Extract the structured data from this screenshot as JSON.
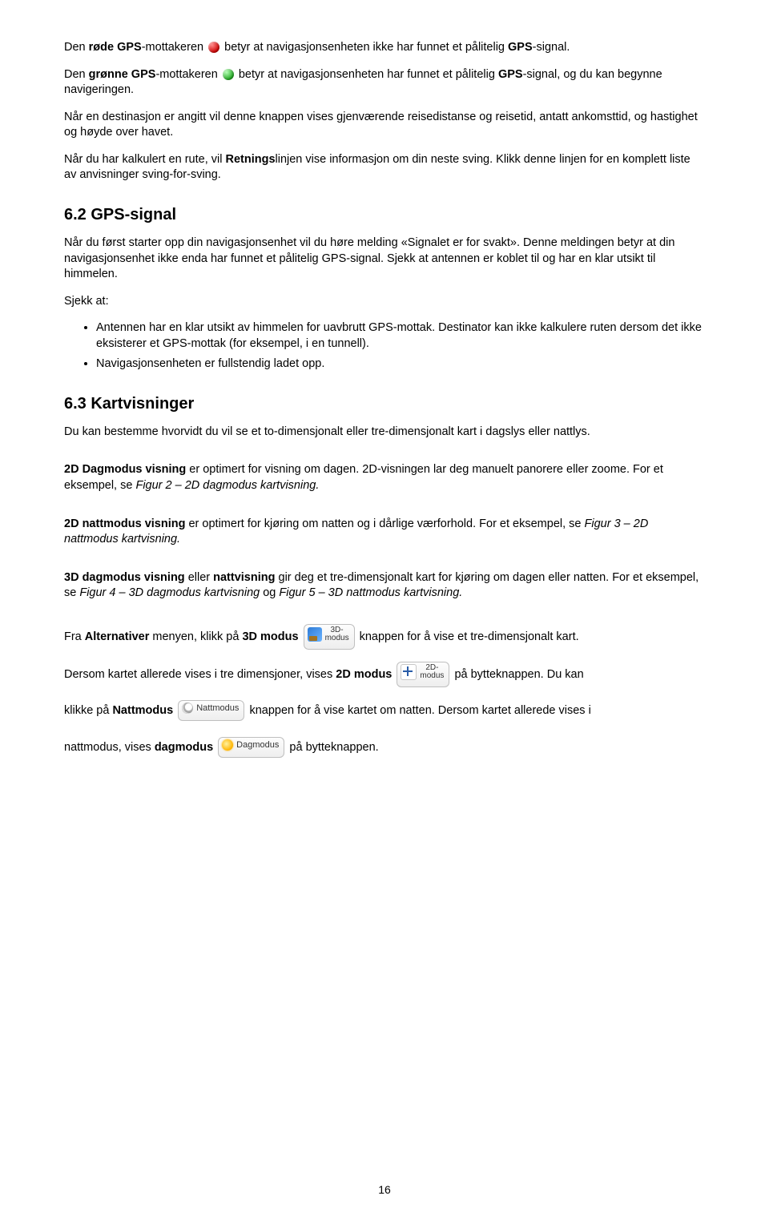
{
  "para1": {
    "pre": "Den ",
    "red_label": "røde GPS",
    "mid": "-mottakeren ",
    "post": " betyr at navigasjonsenheten ikke har funnet et pålitelig ",
    "gps": "GPS",
    "tail": "-signal."
  },
  "para2": {
    "pre": "Den ",
    "green_label": "grønne GPS",
    "mid": "-mottakeren ",
    "post1": " betyr at navigasjonsenheten har funnet et pålitelig ",
    "gps": "GPS",
    "post2": "-signal, og du kan begynne navigeringen."
  },
  "para3": "Når en destinasjon er angitt vil denne knappen vises gjenværende reisedistanse og reisetid, antatt ankomsttid, og hastighet og høyde over havet.",
  "para4_pre": "Når du har kalkulert en rute, vil ",
  "para4_bold": "Retnings",
  "para4_post": "linjen vise informasjon om din neste sving. Klikk denne linjen for en komplett liste av anvisninger sving-for-sving.",
  "h62": "6.2 GPS-signal",
  "para5": "Når du først starter opp din navigasjonsenhet vil du høre melding «Signalet er for svakt». Denne meldingen betyr at din navigasjonsenhet ikke enda har funnet et pålitelig GPS-signal. Sjekk at antennen er koblet til og har en klar utsikt til himmelen.",
  "sjekk_at": "Sjekk at:",
  "bullet1": "Antennen har en klar utsikt av himmelen for uavbrutt GPS-mottak. Destinator kan ikke kalkulere ruten dersom det ikke eksisterer et GPS-mottak (for eksempel, i en tunnell).",
  "bullet2": "Navigasjonsenheten er fullstendig ladet opp.",
  "h63": "6.3 Kartvisninger",
  "para6": "Du kan bestemme hvorvidt du vil se et to-dimensjonalt eller tre-dimensjonalt kart i dagslys eller nattlys.",
  "p2d_day": {
    "bold": "2D Dagmodus visning",
    "text": " er optimert for visning om dagen. 2D-visningen lar deg manuelt panorere eller zoome. For et eksempel, se ",
    "italic": "Figur 2 – 2D dagmodus kartvisning.",
    "tail": ""
  },
  "p2d_night": {
    "bold": "2D nattmodus visning",
    "text": " er optimert for kjøring om natten og i dårlige værforhold. For et eksempel, se ",
    "italic": "Figur 3 – 2D nattmodus kartvisning.",
    "tail": ""
  },
  "p3d": {
    "bold1": "3D dagmodus visning",
    "mid": " eller ",
    "bold2": "nattvisning",
    "text": " gir deg et tre-dimensjonalt kart for kjøring om dagen eller natten. For et eksempel, se ",
    "italic1": "Figur 4 – 3D dagmodus kartvisning",
    "og": " og ",
    "italic2": "Figur 5 – 3D nattmodus kartvisning.",
    "tail": ""
  },
  "alt_line": {
    "pre": "Fra ",
    "bold1": "Alternativer",
    "mid1": " menyen, klikk på ",
    "bold2": "3D modus",
    "post": " knappen for å vise et tre-dimensjonalt kart."
  },
  "line2d": {
    "pre": "Dersom kartet allerede vises i tre dimensjoner, vises ",
    "bold": "2D modus",
    "post": " på bytteknappen. Du kan"
  },
  "night_line": {
    "pre": "klikke på ",
    "bold": "Nattmodus",
    "post": " knappen for å vise kartet om natten. Dersom kartet allerede vises i"
  },
  "day_line": {
    "pre": "nattmodus, vises ",
    "bold": "dagmodus",
    "post": " på bytteknappen."
  },
  "btn": {
    "mode3d_l1": "3D-",
    "mode3d_l2": "modus",
    "mode2d_l1": "2D-",
    "mode2d_l2": "modus",
    "night": "Nattmodus",
    "day": "Dagmodus"
  },
  "page_number": "16"
}
